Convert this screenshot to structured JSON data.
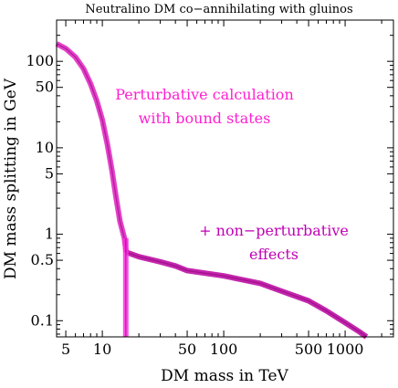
{
  "chart_data": {
    "type": "line",
    "title": "Neutralino DM co−annihilating with gluinos",
    "xlabel": "DM mass in TeV",
    "ylabel": "DM mass splitting in GeV",
    "xscale": "log",
    "yscale": "log",
    "xlim": [
      4.2,
      2500
    ],
    "ylim": [
      0.065,
      300
    ],
    "x_ticks": [
      "5",
      "10",
      "50",
      "100",
      "500",
      "1000"
    ],
    "x_tick_values": [
      5,
      10,
      50,
      100,
      500,
      1000
    ],
    "y_ticks": [
      "0.1",
      "0.5",
      "1",
      "5",
      "10",
      "50",
      "100"
    ],
    "y_tick_values": [
      0.1,
      0.5,
      1,
      5,
      10,
      50,
      100
    ],
    "grid": false,
    "annotations": [
      {
        "lines": [
          "Perturbative calculation",
          "with bound states"
        ],
        "color": "#ff1fd0"
      },
      {
        "lines": [
          "+ non−perturbative",
          "effects"
        ],
        "color": "#c000b4"
      }
    ],
    "series": [
      {
        "color": "#e020c0",
        "points": [
          [
            4.2,
            160
          ],
          [
            5,
            140
          ],
          [
            6,
            112
          ],
          [
            7,
            82
          ],
          [
            8,
            55
          ],
          [
            9,
            35
          ],
          [
            10,
            21
          ],
          [
            11,
            11
          ],
          [
            12,
            5.5
          ],
          [
            13,
            2.6
          ],
          [
            14,
            1.4
          ],
          [
            15.2,
            0.9
          ],
          [
            15.7,
            0.62
          ]
        ]
      },
      {
        "color": "#b8009e",
        "points": [
          [
            15.7,
            0.62
          ],
          [
            20,
            0.55
          ],
          [
            30,
            0.48
          ],
          [
            40,
            0.43
          ],
          [
            50,
            0.38
          ],
          [
            100,
            0.33
          ],
          [
            200,
            0.27
          ],
          [
            300,
            0.22
          ],
          [
            500,
            0.17
          ],
          [
            700,
            0.13
          ],
          [
            1000,
            0.095
          ],
          [
            1300,
            0.075
          ],
          [
            1500,
            0.065
          ]
        ]
      },
      {
        "color": "#ff30e0",
        "points": [
          [
            15.6,
            0.9
          ],
          [
            15.6,
            0.065
          ]
        ]
      }
    ]
  }
}
